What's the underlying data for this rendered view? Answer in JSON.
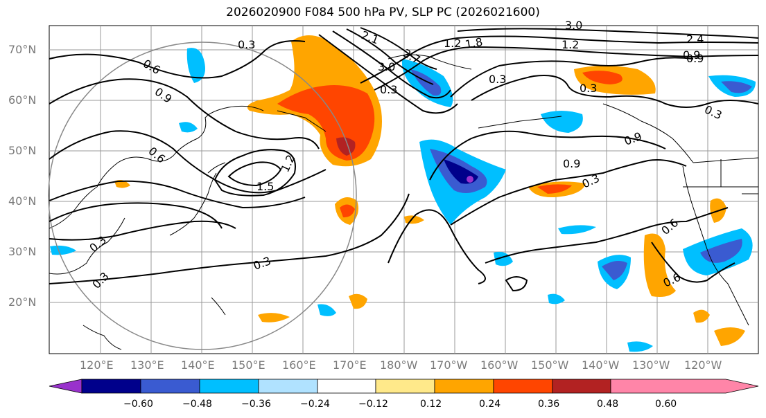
{
  "title": "2026020900 F084 500 hPa PV, SLP PC (2026021600)",
  "lat_labels": [
    "70°N",
    "60°N",
    "50°N",
    "40°N",
    "30°N",
    "20°N"
  ],
  "lon_labels": [
    "120°E",
    "130°E",
    "140°E",
    "150°E",
    "160°E",
    "170°E",
    "180°W",
    "170°W",
    "160°W",
    "150°W",
    "140°W",
    "130°W",
    "120°W"
  ],
  "colorbar": {
    "colors": [
      "#9932cc",
      "#00008b",
      "#3a5bd1",
      "#00bfff",
      "#b0e2ff",
      "#ffffff",
      "#ffe98a",
      "#ffa500",
      "#ff4500",
      "#b22222",
      "#ff85a8"
    ],
    "tick_labels": [
      "−0.60",
      "−0.48",
      "−0.36",
      "−0.24",
      "−0.12",
      "0.12",
      "0.24",
      "0.36",
      "0.48",
      "0.60"
    ]
  },
  "contour_labels": [
    "0.3",
    "0.6",
    "0.9",
    "1.2",
    "1.5",
    "1.8",
    "2.1",
    "2.4",
    "2.7",
    "3.0",
    "1.2",
    "0.9",
    "0.6",
    "0.3",
    "0.3",
    "0.9",
    "0.9",
    "0.3",
    "0.3",
    "0.6",
    "0.6",
    "0.3",
    "0.9",
    "0.3",
    "3.0",
    "0.3",
    "0.3",
    "1.2"
  ]
}
